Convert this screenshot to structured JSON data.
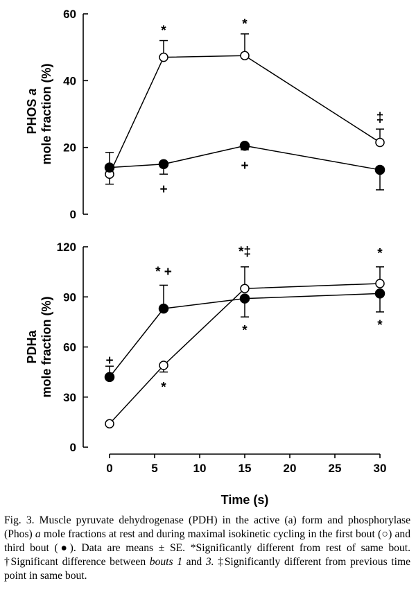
{
  "chart_data": [
    {
      "type": "line",
      "ylabel_line1": "PHOS ",
      "ylabel_italic": "a",
      "ylabel_line2": "mole fraction (%)",
      "ylim": [
        0,
        60
      ],
      "yticks": [
        0,
        20,
        40,
        60
      ],
      "xlim": [
        0,
        30
      ],
      "grid": false,
      "series": [
        {
          "fill": "open",
          "x": [
            0,
            6,
            15,
            30
          ],
          "y": [
            12,
            47,
            47.5,
            21.5
          ],
          "err_dir": [
            -1,
            1,
            1,
            1
          ],
          "err": [
            3,
            5,
            6.5,
            4
          ]
        },
        {
          "fill": "filled",
          "x": [
            0,
            6,
            15,
            30
          ],
          "y": [
            14,
            15,
            20.5,
            13.3
          ],
          "err_dir": [
            1,
            -1,
            -1,
            -1
          ],
          "err": [
            4.5,
            3,
            1.2,
            6
          ]
        }
      ],
      "annotations": [
        {
          "text": "*",
          "x": 6,
          "y": 55
        },
        {
          "text": "*",
          "x": 15,
          "y": 57
        },
        {
          "text": "‡",
          "x": 30,
          "y": 29
        },
        {
          "text": "+",
          "x": 6,
          "y": 7.5
        },
        {
          "text": "+",
          "x": 15,
          "y": 14.5
        }
      ]
    },
    {
      "type": "line",
      "ylabel_line1": "PDHa",
      "ylabel_line2": "mole fraction (%)",
      "ylim": [
        0,
        120
      ],
      "yticks": [
        0,
        30,
        60,
        90,
        120
      ],
      "xlim": [
        0,
        30
      ],
      "xticks": [
        0,
        5,
        10,
        15,
        20,
        25,
        30
      ],
      "xlabel": "Time (s)",
      "grid": false,
      "series": [
        {
          "fill": "open",
          "x": [
            0,
            6,
            15,
            30
          ],
          "y": [
            14,
            49,
            95,
            98
          ],
          "err_dir": [
            -1,
            -1,
            1,
            1
          ],
          "err": [
            1,
            4,
            13,
            10
          ]
        },
        {
          "fill": "filled",
          "x": [
            0,
            6,
            15,
            30
          ],
          "y": [
            42,
            83,
            89,
            92
          ],
          "err_dir": [
            1,
            1,
            -1,
            -1
          ],
          "err": [
            6.5,
            14,
            11,
            11
          ]
        }
      ],
      "annotations": [
        {
          "text": "+",
          "x": 0,
          "y": 52
        },
        {
          "text": "* +",
          "x": 6,
          "y": 105
        },
        {
          "text": "*‡",
          "x": 15,
          "y": 117
        },
        {
          "text": "*",
          "x": 30,
          "y": 116
        },
        {
          "text": "*",
          "x": 6,
          "y": 36
        },
        {
          "text": "*",
          "x": 15,
          "y": 70
        },
        {
          "text": "*",
          "x": 30,
          "y": 73
        }
      ]
    }
  ],
  "caption": {
    "segments": [
      {
        "text": "Fig. 3.  Muscle pyruvate dehydrogenase (PDH) in the active (a) form and phosphorylase (Phos) ",
        "italic": false
      },
      {
        "text": "a",
        "italic": true
      },
      {
        "text": " mole fractions at rest and during maximal isokinetic cycling in the first bout (○) and third bout (●). Data are means ± SE. *Significantly different from rest of same bout. †Significant difference between ",
        "italic": false
      },
      {
        "text": "bouts 1",
        "italic": true
      },
      {
        "text": " and ",
        "italic": false
      },
      {
        "text": "3.",
        "italic": true
      },
      {
        "text": " ‡Significantly different from previous time point in same bout.",
        "italic": false
      }
    ]
  }
}
